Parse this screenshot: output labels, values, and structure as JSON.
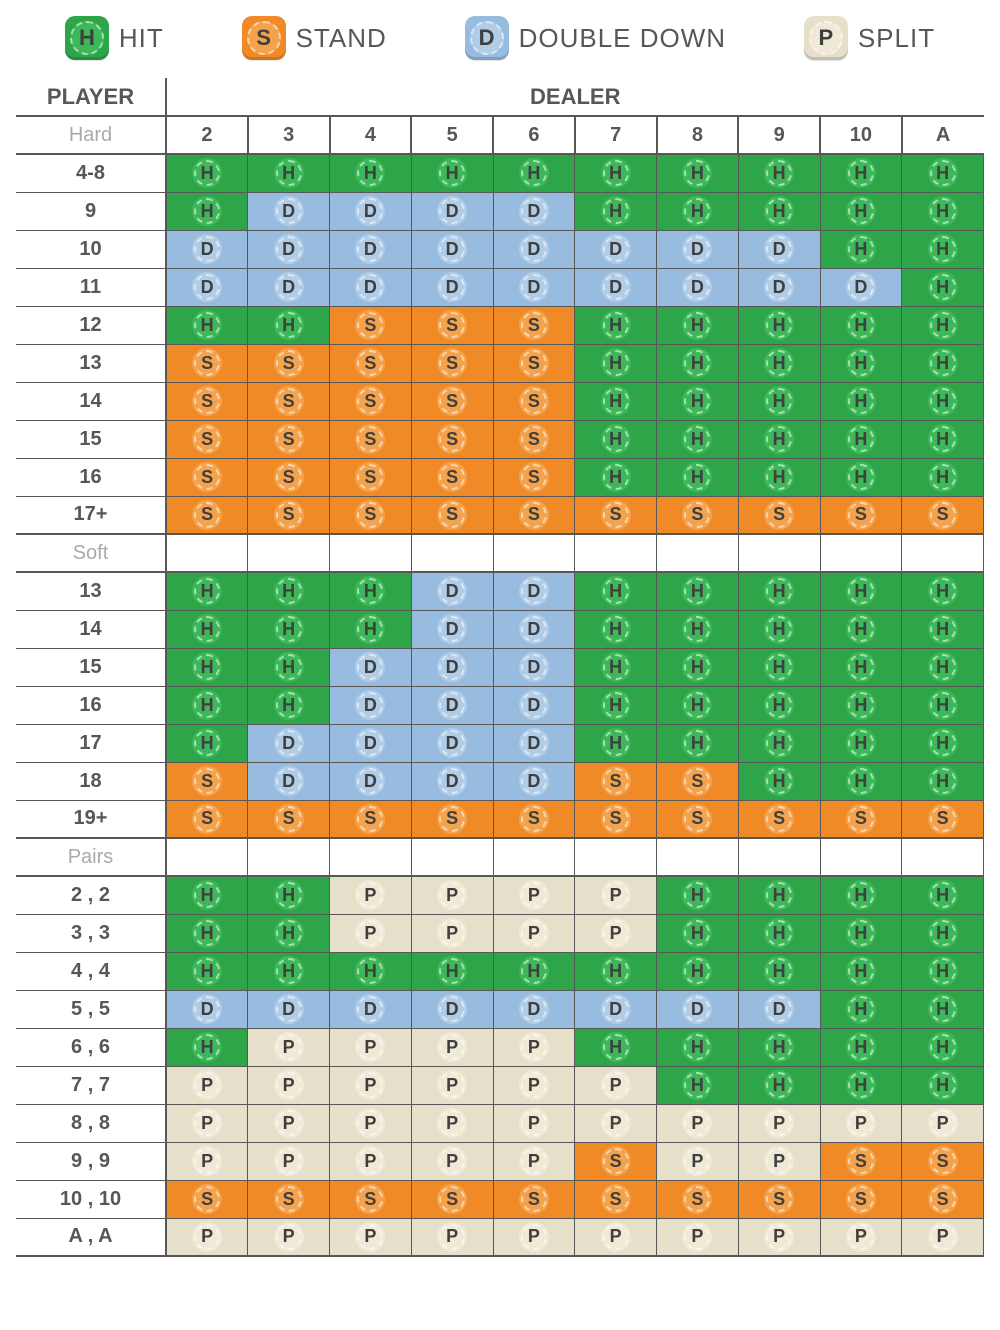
{
  "colors": {
    "H": {
      "bg": "#2fa54a",
      "chip": "#3cb859"
    },
    "S": {
      "bg": "#ef8a26",
      "chip": "#f4a24c"
    },
    "D": {
      "bg": "#98bcdf",
      "chip": "#b0cce7"
    },
    "P": {
      "bg": "#e6e0cb",
      "chip": "#efe9d6"
    }
  },
  "legend": [
    {
      "code": "H",
      "label": "HIT"
    },
    {
      "code": "S",
      "label": "STAND"
    },
    {
      "code": "D",
      "label": "DOUBLE DOWN"
    },
    {
      "code": "P",
      "label": "SPLIT"
    }
  ],
  "headers": {
    "player": "PLAYER",
    "dealer": "DEALER",
    "dealer_cols": [
      "2",
      "3",
      "4",
      "5",
      "6",
      "7",
      "8",
      "9",
      "10",
      "A"
    ]
  },
  "sections": [
    {
      "name": "Hard",
      "rows": [
        {
          "label": "4-8",
          "cells": [
            "H",
            "H",
            "H",
            "H",
            "H",
            "H",
            "H",
            "H",
            "H",
            "H"
          ]
        },
        {
          "label": "9",
          "cells": [
            "H",
            "D",
            "D",
            "D",
            "D",
            "H",
            "H",
            "H",
            "H",
            "H"
          ]
        },
        {
          "label": "10",
          "cells": [
            "D",
            "D",
            "D",
            "D",
            "D",
            "D",
            "D",
            "D",
            "H",
            "H"
          ]
        },
        {
          "label": "11",
          "cells": [
            "D",
            "D",
            "D",
            "D",
            "D",
            "D",
            "D",
            "D",
            "D",
            "H"
          ]
        },
        {
          "label": "12",
          "cells": [
            "H",
            "H",
            "S",
            "S",
            "S",
            "H",
            "H",
            "H",
            "H",
            "H"
          ]
        },
        {
          "label": "13",
          "cells": [
            "S",
            "S",
            "S",
            "S",
            "S",
            "H",
            "H",
            "H",
            "H",
            "H"
          ]
        },
        {
          "label": "14",
          "cells": [
            "S",
            "S",
            "S",
            "S",
            "S",
            "H",
            "H",
            "H",
            "H",
            "H"
          ]
        },
        {
          "label": "15",
          "cells": [
            "S",
            "S",
            "S",
            "S",
            "S",
            "H",
            "H",
            "H",
            "H",
            "H"
          ]
        },
        {
          "label": "16",
          "cells": [
            "S",
            "S",
            "S",
            "S",
            "S",
            "H",
            "H",
            "H",
            "H",
            "H"
          ]
        },
        {
          "label": "17+",
          "cells": [
            "S",
            "S",
            "S",
            "S",
            "S",
            "S",
            "S",
            "S",
            "S",
            "S"
          ]
        }
      ]
    },
    {
      "name": "Soft",
      "rows": [
        {
          "label": "13",
          "cells": [
            "H",
            "H",
            "H",
            "D",
            "D",
            "H",
            "H",
            "H",
            "H",
            "H"
          ]
        },
        {
          "label": "14",
          "cells": [
            "H",
            "H",
            "H",
            "D",
            "D",
            "H",
            "H",
            "H",
            "H",
            "H"
          ]
        },
        {
          "label": "15",
          "cells": [
            "H",
            "H",
            "D",
            "D",
            "D",
            "H",
            "H",
            "H",
            "H",
            "H"
          ]
        },
        {
          "label": "16",
          "cells": [
            "H",
            "H",
            "D",
            "D",
            "D",
            "H",
            "H",
            "H",
            "H",
            "H"
          ]
        },
        {
          "label": "17",
          "cells": [
            "H",
            "D",
            "D",
            "D",
            "D",
            "H",
            "H",
            "H",
            "H",
            "H"
          ]
        },
        {
          "label": "18",
          "cells": [
            "S",
            "D",
            "D",
            "D",
            "D",
            "S",
            "S",
            "H",
            "H",
            "H"
          ]
        },
        {
          "label": "19+",
          "cells": [
            "S",
            "S",
            "S",
            "S",
            "S",
            "S",
            "S",
            "S",
            "S",
            "S"
          ]
        }
      ]
    },
    {
      "name": "Pairs",
      "rows": [
        {
          "label": "2 , 2",
          "cells": [
            "H",
            "H",
            "P",
            "P",
            "P",
            "P",
            "H",
            "H",
            "H",
            "H"
          ]
        },
        {
          "label": "3 , 3",
          "cells": [
            "H",
            "H",
            "P",
            "P",
            "P",
            "P",
            "H",
            "H",
            "H",
            "H"
          ]
        },
        {
          "label": "4 , 4",
          "cells": [
            "H",
            "H",
            "H",
            "H",
            "H",
            "H",
            "H",
            "H",
            "H",
            "H"
          ]
        },
        {
          "label": "5 , 5",
          "cells": [
            "D",
            "D",
            "D",
            "D",
            "D",
            "D",
            "D",
            "D",
            "H",
            "H"
          ]
        },
        {
          "label": "6 , 6",
          "cells": [
            "H",
            "P",
            "P",
            "P",
            "P",
            "H",
            "H",
            "H",
            "H",
            "H"
          ]
        },
        {
          "label": "7 , 7",
          "cells": [
            "P",
            "P",
            "P",
            "P",
            "P",
            "P",
            "H",
            "H",
            "H",
            "H"
          ]
        },
        {
          "label": "8 , 8",
          "cells": [
            "P",
            "P",
            "P",
            "P",
            "P",
            "P",
            "P",
            "P",
            "P",
            "P"
          ]
        },
        {
          "label": "9 , 9",
          "cells": [
            "P",
            "P",
            "P",
            "P",
            "P",
            "S",
            "P",
            "P",
            "S",
            "S"
          ]
        },
        {
          "label": "10 , 10",
          "cells": [
            "S",
            "S",
            "S",
            "S",
            "S",
            "S",
            "S",
            "S",
            "S",
            "S"
          ]
        },
        {
          "label": "A , A",
          "cells": [
            "P",
            "P",
            "P",
            "P",
            "P",
            "P",
            "P",
            "P",
            "P",
            "P"
          ]
        }
      ]
    }
  ]
}
